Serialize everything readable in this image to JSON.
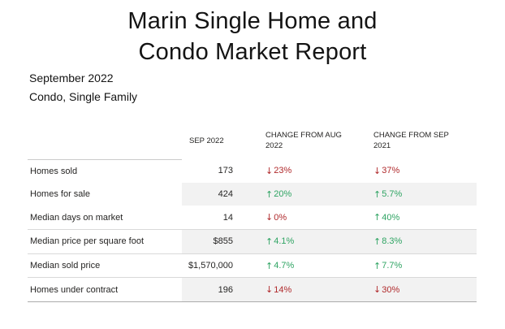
{
  "page": {
    "title_line1": "Marin Single Home and",
    "title_line2": "Condo Market Report",
    "subtitle_line1": "September 2022",
    "subtitle_line2": "Condo, Single Family"
  },
  "table": {
    "headers": {
      "metric": "",
      "current": "SEP 2022",
      "mom": "CHANGE FROM AUG 2022",
      "yoy": "CHANGE FROM SEP 2021"
    },
    "rows": [
      {
        "label": "Homes sold",
        "value": "173",
        "mom": {
          "arrow": "↓",
          "pct": "23%",
          "trend": "down"
        },
        "yoy": {
          "arrow": "↓",
          "pct": "37%",
          "trend": "down"
        }
      },
      {
        "label": "Homes for sale",
        "value": "424",
        "mom": {
          "arrow": "↑",
          "pct": "20%",
          "trend": "up"
        },
        "yoy": {
          "arrow": "↑",
          "pct": "5.7%",
          "trend": "up"
        }
      },
      {
        "label": "Median days on market",
        "value": "14",
        "mom": {
          "arrow": "↓",
          "pct": "0%",
          "trend": "down"
        },
        "yoy": {
          "arrow": "↑",
          "pct": "40%",
          "trend": "up"
        }
      },
      {
        "label": "Median price per square foot",
        "value": "$855",
        "mom": {
          "arrow": "↑",
          "pct": "4.1%",
          "trend": "up"
        },
        "yoy": {
          "arrow": "↑",
          "pct": "8.3%",
          "trend": "up"
        }
      },
      {
        "label": "Median sold price",
        "value": "$1,570,000",
        "mom": {
          "arrow": "↑",
          "pct": "4.7%",
          "trend": "up"
        },
        "yoy": {
          "arrow": "↑",
          "pct": "7.7%",
          "trend": "up"
        }
      },
      {
        "label": "Homes under contract",
        "value": "196",
        "mom": {
          "arrow": "↓",
          "pct": "14%",
          "trend": "down"
        },
        "yoy": {
          "arrow": "↓",
          "pct": "30%",
          "trend": "down"
        }
      }
    ]
  },
  "colors": {
    "positive_green": "#2fa463",
    "negative_red": "#b02a2c",
    "alt_row_bg": "#f2f2f2",
    "inner_border": "#d9d9d9",
    "outer_border": "#ababab",
    "text": "#252423"
  },
  "chart_data": {
    "type": "table",
    "title": "Marin Single Home and Condo Market Report",
    "subtitle": [
      "September 2022",
      "Condo, Single Family"
    ],
    "columns": [
      "",
      "SEP 2022",
      "CHANGE FROM AUG 2022",
      "CHANGE FROM SEP 2021"
    ],
    "rows": [
      [
        "Homes sold",
        173,
        "-23%",
        "-37%"
      ],
      [
        "Homes for sale",
        424,
        "+20%",
        "+5.7%"
      ],
      [
        "Median days on market",
        14,
        "-0%",
        "+40%"
      ],
      [
        "Median price per square foot",
        "$855",
        "+4.1%",
        "+8.3%"
      ],
      [
        "Median sold price",
        "$1,570,000",
        "+4.7%",
        "+7.7%"
      ],
      [
        "Homes under contract",
        196,
        "-14%",
        "-30%"
      ]
    ]
  }
}
